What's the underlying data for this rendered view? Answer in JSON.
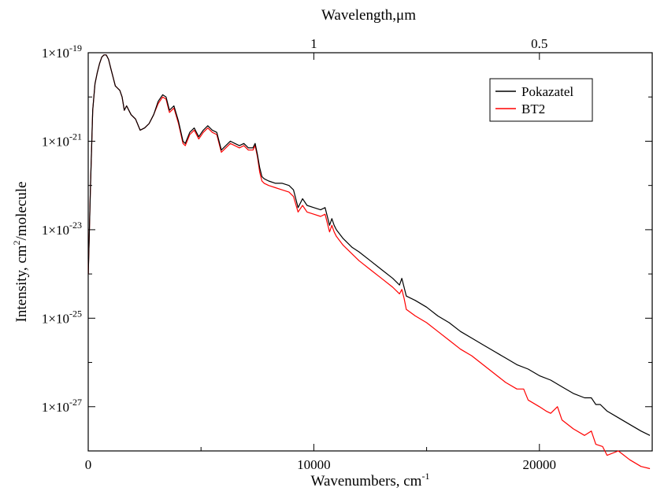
{
  "chart_data": {
    "type": "line",
    "title": "",
    "xlabel": "Wavenumbers, cm",
    "xlabel_sup": "-1",
    "ylabel": "Intensity, cm",
    "ylabel_sup": "2",
    "ylabel_tail": "/molecule",
    "top_xlabel": "Wavelength,μm",
    "xlim": [
      0,
      25000
    ],
    "ylim_log10": [
      -28,
      -19
    ],
    "y_scale": "log",
    "x_ticks": [
      {
        "value": 0,
        "label": "0"
      },
      {
        "value": 10000,
        "label": "10000"
      },
      {
        "value": 20000,
        "label": "20000"
      }
    ],
    "y_ticks": [
      {
        "exp": -19,
        "base": "1×10",
        "sup": "-19"
      },
      {
        "exp": -21,
        "base": "1×10",
        "sup": "-21"
      },
      {
        "exp": -23,
        "base": "1×10",
        "sup": "-23"
      },
      {
        "exp": -25,
        "base": "1×10",
        "sup": "-25"
      },
      {
        "exp": -27,
        "base": "1×10",
        "sup": "-27"
      }
    ],
    "top_ticks": [
      {
        "wavelength_um": 1,
        "label": "1"
      },
      {
        "wavelength_um": 0.5,
        "label": "0.5"
      }
    ],
    "legend_position": "top-right",
    "series": [
      {
        "name": "Pokazatel",
        "color": "#000000",
        "x": [
          5,
          100,
          200,
          300,
          400,
          500,
          600,
          700,
          800,
          900,
          1000,
          1100,
          1200,
          1300,
          1400,
          1500,
          1600,
          1700,
          1900,
          2100,
          2300,
          2500,
          2700,
          2900,
          3100,
          3300,
          3450,
          3600,
          3800,
          4000,
          4200,
          4300,
          4500,
          4700,
          4900,
          5100,
          5300,
          5500,
          5700,
          5900,
          6100,
          6300,
          6500,
          6700,
          6900,
          7100,
          7300,
          7400,
          7500,
          7600,
          7700,
          7800,
          8000,
          8300,
          8600,
          8900,
          9100,
          9300,
          9500,
          9700,
          10000,
          10300,
          10500,
          10700,
          10800,
          10900,
          11000,
          11300,
          11700,
          12000,
          12500,
          13000,
          13500,
          13800,
          13900,
          14000,
          14100,
          14500,
          15000,
          15500,
          16000,
          16500,
          17000,
          17500,
          18000,
          18500,
          19000,
          19500,
          20000,
          20500,
          21000,
          21500,
          22000,
          22300,
          22500,
          22700,
          23000,
          23500,
          24000,
          24500,
          24900
        ],
        "log10_y": [
          -24.0,
          -22.0,
          -20.3,
          -19.7,
          -19.45,
          -19.25,
          -19.1,
          -19.05,
          -19.05,
          -19.15,
          -19.35,
          -19.55,
          -19.75,
          -19.8,
          -19.85,
          -20.0,
          -20.3,
          -20.2,
          -20.4,
          -20.5,
          -20.75,
          -20.7,
          -20.6,
          -20.4,
          -20.1,
          -19.95,
          -20.0,
          -20.3,
          -20.2,
          -20.55,
          -21.0,
          -21.05,
          -20.8,
          -20.7,
          -20.9,
          -20.75,
          -20.65,
          -20.75,
          -20.8,
          -21.2,
          -21.1,
          -21.0,
          -21.05,
          -21.1,
          -21.05,
          -21.15,
          -21.15,
          -21.05,
          -21.3,
          -21.6,
          -21.8,
          -21.85,
          -21.9,
          -21.95,
          -21.95,
          -22.0,
          -22.1,
          -22.5,
          -22.3,
          -22.45,
          -22.5,
          -22.55,
          -22.5,
          -22.9,
          -22.75,
          -22.9,
          -23.0,
          -23.2,
          -23.4,
          -23.5,
          -23.7,
          -23.9,
          -24.1,
          -24.25,
          -24.1,
          -24.3,
          -24.5,
          -24.6,
          -24.75,
          -24.95,
          -25.1,
          -25.3,
          -25.45,
          -25.6,
          -25.75,
          -25.9,
          -26.05,
          -26.15,
          -26.3,
          -26.4,
          -26.55,
          -26.7,
          -26.8,
          -26.8,
          -26.95,
          -26.95,
          -27.1,
          -27.25,
          -27.4,
          -27.55,
          -27.65
        ]
      },
      {
        "name": "BT2",
        "color": "#ff0000",
        "x": [
          5,
          100,
          200,
          300,
          400,
          500,
          600,
          700,
          800,
          900,
          1000,
          1100,
          1200,
          1300,
          1400,
          1500,
          1600,
          1700,
          1900,
          2100,
          2300,
          2500,
          2700,
          2900,
          3100,
          3300,
          3450,
          3600,
          3800,
          4000,
          4200,
          4300,
          4500,
          4700,
          4900,
          5100,
          5300,
          5500,
          5700,
          5900,
          6100,
          6300,
          6500,
          6700,
          6900,
          7100,
          7300,
          7400,
          7500,
          7600,
          7700,
          7800,
          8000,
          8300,
          8600,
          8900,
          9100,
          9300,
          9500,
          9700,
          10000,
          10300,
          10500,
          10700,
          10800,
          10900,
          11000,
          11300,
          11700,
          12000,
          12500,
          13000,
          13500,
          13800,
          13900,
          14000,
          14100,
          14500,
          15000,
          15500,
          16000,
          16500,
          17000,
          17500,
          18000,
          18500,
          19000,
          19300,
          19500,
          20000,
          20300,
          20500,
          20800,
          21000,
          21500,
          22000,
          22300,
          22500,
          22800,
          23000,
          23500,
          24000,
          24500,
          24900
        ],
        "log10_y": [
          -24.0,
          -22.0,
          -20.3,
          -19.7,
          -19.45,
          -19.25,
          -19.1,
          -19.05,
          -19.05,
          -19.15,
          -19.35,
          -19.55,
          -19.75,
          -19.8,
          -19.85,
          -20.0,
          -20.3,
          -20.2,
          -20.4,
          -20.5,
          -20.75,
          -20.7,
          -20.6,
          -20.4,
          -20.15,
          -20.0,
          -20.05,
          -20.35,
          -20.25,
          -20.6,
          -21.05,
          -21.1,
          -20.85,
          -20.75,
          -20.95,
          -20.8,
          -20.7,
          -20.8,
          -20.85,
          -21.25,
          -21.15,
          -21.05,
          -21.1,
          -21.15,
          -21.1,
          -21.2,
          -21.2,
          -21.1,
          -21.35,
          -21.7,
          -21.9,
          -21.95,
          -22.0,
          -22.05,
          -22.1,
          -22.15,
          -22.25,
          -22.6,
          -22.45,
          -22.6,
          -22.65,
          -22.7,
          -22.65,
          -23.05,
          -22.9,
          -23.05,
          -23.15,
          -23.35,
          -23.55,
          -23.7,
          -23.9,
          -24.1,
          -24.3,
          -24.45,
          -24.35,
          -24.55,
          -24.8,
          -24.95,
          -25.1,
          -25.3,
          -25.5,
          -25.7,
          -25.85,
          -26.05,
          -26.25,
          -26.45,
          -26.6,
          -26.6,
          -26.85,
          -27.0,
          -27.1,
          -27.15,
          -27.0,
          -27.3,
          -27.5,
          -27.65,
          -27.55,
          -27.85,
          -27.9,
          -28.1,
          -28.0,
          -28.2,
          -28.35,
          -28.4
        ]
      }
    ]
  }
}
